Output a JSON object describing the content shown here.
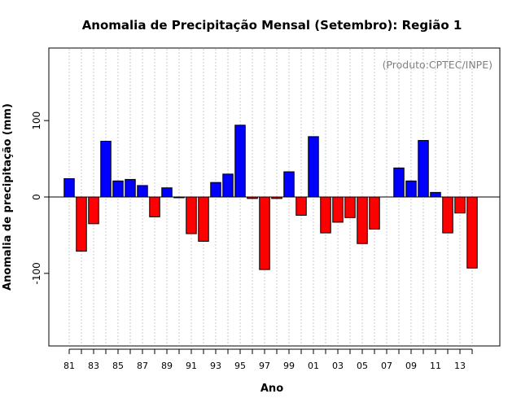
{
  "chart_data": {
    "type": "bar",
    "title": "Anomalia de Precipitação Mensal (Setembro): Região 1",
    "xlabel": "Ano",
    "ylabel": "Anomalia de precipitação (mm)",
    "annotation": "(Produto:CPTEC/INPE)",
    "ylim": [
      -195,
      195
    ],
    "yticks": [
      -100,
      0,
      100
    ],
    "ytick_labels": [
      "-100",
      "0",
      "100"
    ],
    "categories": [
      "81",
      "82",
      "83",
      "84",
      "85",
      "86",
      "87",
      "88",
      "89",
      "90",
      "91",
      "92",
      "93",
      "94",
      "95",
      "96",
      "97",
      "98",
      "99",
      "00",
      "01",
      "02",
      "03",
      "04",
      "05",
      "06",
      "07",
      "08",
      "09",
      "10",
      "11",
      "12",
      "13",
      "14"
    ],
    "xtick_labels": [
      "81",
      "83",
      "85",
      "87",
      "89",
      "91",
      "93",
      "95",
      "97",
      "99",
      "01",
      "03",
      "05",
      "07",
      "09",
      "11",
      "13"
    ],
    "values": [
      24,
      -71,
      -35,
      73,
      21,
      23,
      15,
      -26,
      12,
      -1,
      -48,
      -58,
      19,
      30,
      94,
      -2,
      -95,
      -2,
      33,
      -24,
      79,
      -47,
      -33,
      -27,
      -61,
      -42,
      0,
      38,
      21,
      74,
      6,
      -47,
      -21,
      -93
    ],
    "colors": {
      "positive": "#0000ff",
      "negative": "#ff0000",
      "grid": "#c8c8c8",
      "zero_line": "#000000"
    },
    "grid": true
  }
}
